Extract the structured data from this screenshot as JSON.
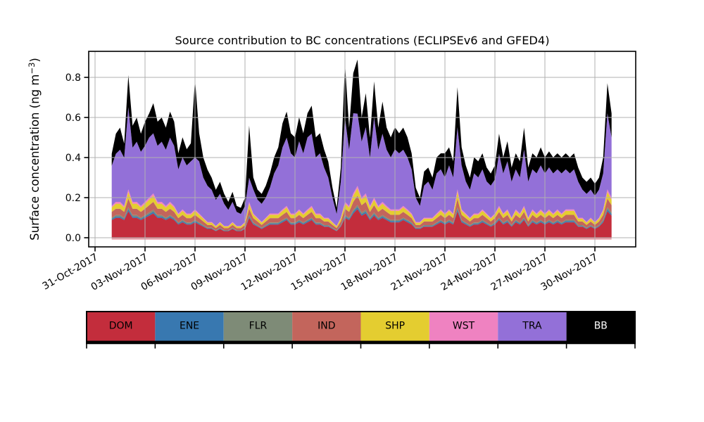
{
  "figure": {
    "title": "Source contribution to BC concentrations (ECLIPSEv6 and GFED4)",
    "ylabel": {
      "pre": "Surface concentration (ng m",
      "sup": "−3",
      "post": ")"
    },
    "background": "#ffffff"
  },
  "chart_data": {
    "type": "area",
    "stacked": true,
    "title": "Source contribution to BC concentrations (ECLIPSEv6 and GFED4)",
    "xlabel": "",
    "ylabel": "Surface concentration (ng m^-3)",
    "grid": true,
    "grid_color": "#b0b0b0",
    "legend_position": "bottom",
    "x_axis": {
      "tick_days": [
        0,
        3,
        6,
        9,
        12,
        15,
        18,
        21,
        24,
        27,
        30
      ],
      "tick_labels": [
        "31-Oct-2017",
        "03-Nov-2017",
        "06-Nov-2017",
        "09-Nov-2017",
        "12-Nov-2017",
        "15-Nov-2017",
        "18-Nov-2017",
        "21-Nov-2017",
        "24-Nov-2017",
        "27-Nov-2017",
        "30-Nov-2017"
      ],
      "xlim_days": [
        -0.4,
        32.45
      ]
    },
    "y_axis": {
      "tick_values": [
        0.0,
        0.2,
        0.4,
        0.6,
        0.8
      ],
      "tick_labels": [
        "0.0",
        "0.2",
        "0.4",
        "0.6",
        "0.8"
      ],
      "ylim": [
        -0.046,
        0.93
      ]
    },
    "x_days": {
      "start": 1.0,
      "step": 0.25,
      "count": 121,
      "epoch_label": "days since 31-Oct-2017 00:00"
    },
    "baseline_edge_color": "#e89aa4",
    "series": [
      {
        "name": "DOM",
        "color": "#c32d3c",
        "values": [
          0.088,
          0.099,
          0.099,
          0.088,
          0.132,
          0.099,
          0.099,
          0.088,
          0.099,
          0.11,
          0.121,
          0.099,
          0.099,
          0.088,
          0.099,
          0.088,
          0.066,
          0.077,
          0.066,
          0.066,
          0.077,
          0.066,
          0.055,
          0.044,
          0.044,
          0.033,
          0.044,
          0.033,
          0.033,
          0.044,
          0.033,
          0.033,
          0.044,
          0.099,
          0.066,
          0.055,
          0.044,
          0.055,
          0.066,
          0.066,
          0.066,
          0.077,
          0.088,
          0.066,
          0.066,
          0.077,
          0.066,
          0.077,
          0.088,
          0.066,
          0.066,
          0.055,
          0.055,
          0.044,
          0.033,
          0.055,
          0.099,
          0.088,
          0.121,
          0.143,
          0.11,
          0.121,
          0.088,
          0.11,
          0.088,
          0.099,
          0.088,
          0.077,
          0.077,
          0.077,
          0.088,
          0.077,
          0.066,
          0.044,
          0.044,
          0.055,
          0.055,
          0.055,
          0.066,
          0.077,
          0.066,
          0.077,
          0.066,
          0.132,
          0.077,
          0.066,
          0.055,
          0.066,
          0.066,
          0.077,
          0.066,
          0.055,
          0.066,
          0.088,
          0.066,
          0.077,
          0.055,
          0.077,
          0.066,
          0.088,
          0.055,
          0.077,
          0.066,
          0.077,
          0.066,
          0.077,
          0.066,
          0.077,
          0.066,
          0.077,
          0.077,
          0.077,
          0.055,
          0.055,
          0.044,
          0.055,
          0.044,
          0.055,
          0.077,
          0.132,
          0.11
        ]
      },
      {
        "name": "ENE",
        "color": "#3878b0",
        "values": [
          0.006,
          0.007,
          0.007,
          0.006,
          0.01,
          0.007,
          0.007,
          0.006,
          0.007,
          0.008,
          0.009,
          0.007,
          0.007,
          0.006,
          0.007,
          0.006,
          0.005,
          0.006,
          0.005,
          0.005,
          0.006,
          0.005,
          0.004,
          0.003,
          0.003,
          0.002,
          0.003,
          0.002,
          0.002,
          0.003,
          0.002,
          0.002,
          0.003,
          0.007,
          0.005,
          0.004,
          0.003,
          0.004,
          0.005,
          0.005,
          0.005,
          0.006,
          0.006,
          0.005,
          0.005,
          0.006,
          0.005,
          0.006,
          0.006,
          0.005,
          0.005,
          0.004,
          0.004,
          0.003,
          0.002,
          0.004,
          0.007,
          0.006,
          0.009,
          0.01,
          0.008,
          0.009,
          0.006,
          0.008,
          0.006,
          0.007,
          0.006,
          0.006,
          0.006,
          0.006,
          0.006,
          0.006,
          0.005,
          0.003,
          0.003,
          0.004,
          0.004,
          0.004,
          0.005,
          0.006,
          0.005,
          0.006,
          0.005,
          0.01,
          0.006,
          0.005,
          0.004,
          0.005,
          0.005,
          0.006,
          0.005,
          0.004,
          0.005,
          0.006,
          0.005,
          0.006,
          0.004,
          0.006,
          0.005,
          0.006,
          0.004,
          0.006,
          0.005,
          0.006,
          0.005,
          0.006,
          0.005,
          0.006,
          0.005,
          0.006,
          0.006,
          0.006,
          0.004,
          0.004,
          0.003,
          0.004,
          0.003,
          0.004,
          0.006,
          0.01,
          0.008
        ]
      },
      {
        "name": "FLR",
        "color": "#7e8b77",
        "values": [
          0.006,
          0.007,
          0.007,
          0.006,
          0.01,
          0.007,
          0.007,
          0.006,
          0.007,
          0.008,
          0.009,
          0.007,
          0.007,
          0.006,
          0.007,
          0.006,
          0.005,
          0.006,
          0.005,
          0.005,
          0.006,
          0.005,
          0.004,
          0.003,
          0.003,
          0.002,
          0.003,
          0.002,
          0.002,
          0.003,
          0.002,
          0.002,
          0.003,
          0.007,
          0.005,
          0.004,
          0.003,
          0.004,
          0.005,
          0.005,
          0.005,
          0.006,
          0.006,
          0.005,
          0.005,
          0.006,
          0.005,
          0.006,
          0.006,
          0.005,
          0.005,
          0.004,
          0.004,
          0.003,
          0.002,
          0.004,
          0.007,
          0.006,
          0.009,
          0.01,
          0.008,
          0.009,
          0.006,
          0.008,
          0.006,
          0.007,
          0.006,
          0.006,
          0.006,
          0.006,
          0.006,
          0.006,
          0.005,
          0.003,
          0.003,
          0.004,
          0.004,
          0.004,
          0.005,
          0.006,
          0.005,
          0.006,
          0.005,
          0.01,
          0.006,
          0.005,
          0.004,
          0.005,
          0.005,
          0.006,
          0.005,
          0.004,
          0.005,
          0.006,
          0.005,
          0.006,
          0.004,
          0.006,
          0.005,
          0.006,
          0.004,
          0.006,
          0.005,
          0.006,
          0.005,
          0.006,
          0.005,
          0.006,
          0.005,
          0.006,
          0.006,
          0.006,
          0.004,
          0.004,
          0.003,
          0.004,
          0.003,
          0.004,
          0.006,
          0.01,
          0.008
        ]
      },
      {
        "name": "IND",
        "color": "#c3655c",
        "values": [
          0.029,
          0.032,
          0.032,
          0.029,
          0.043,
          0.032,
          0.032,
          0.029,
          0.032,
          0.036,
          0.04,
          0.032,
          0.032,
          0.029,
          0.032,
          0.029,
          0.022,
          0.025,
          0.022,
          0.022,
          0.025,
          0.022,
          0.018,
          0.014,
          0.014,
          0.011,
          0.014,
          0.011,
          0.011,
          0.014,
          0.011,
          0.011,
          0.014,
          0.032,
          0.022,
          0.018,
          0.014,
          0.018,
          0.022,
          0.022,
          0.022,
          0.025,
          0.029,
          0.022,
          0.022,
          0.025,
          0.022,
          0.025,
          0.029,
          0.022,
          0.022,
          0.018,
          0.018,
          0.014,
          0.011,
          0.018,
          0.032,
          0.029,
          0.04,
          0.047,
          0.036,
          0.04,
          0.029,
          0.036,
          0.029,
          0.032,
          0.029,
          0.025,
          0.025,
          0.025,
          0.029,
          0.025,
          0.022,
          0.014,
          0.014,
          0.018,
          0.018,
          0.018,
          0.022,
          0.025,
          0.022,
          0.025,
          0.022,
          0.043,
          0.025,
          0.022,
          0.018,
          0.022,
          0.022,
          0.025,
          0.022,
          0.018,
          0.022,
          0.029,
          0.022,
          0.025,
          0.018,
          0.025,
          0.022,
          0.029,
          0.018,
          0.025,
          0.022,
          0.025,
          0.022,
          0.025,
          0.022,
          0.025,
          0.022,
          0.025,
          0.025,
          0.025,
          0.018,
          0.018,
          0.014,
          0.018,
          0.014,
          0.018,
          0.025,
          0.043,
          0.036
        ]
      },
      {
        "name": "SHP",
        "color": "#e4cd30",
        "values": [
          0.022,
          0.025,
          0.025,
          0.022,
          0.034,
          0.025,
          0.025,
          0.022,
          0.025,
          0.028,
          0.031,
          0.025,
          0.025,
          0.022,
          0.025,
          0.022,
          0.017,
          0.02,
          0.017,
          0.017,
          0.02,
          0.017,
          0.014,
          0.011,
          0.011,
          0.008,
          0.011,
          0.008,
          0.008,
          0.011,
          0.008,
          0.008,
          0.011,
          0.025,
          0.017,
          0.014,
          0.011,
          0.014,
          0.017,
          0.017,
          0.017,
          0.02,
          0.022,
          0.017,
          0.017,
          0.02,
          0.017,
          0.02,
          0.022,
          0.017,
          0.017,
          0.014,
          0.014,
          0.011,
          0.008,
          0.014,
          0.025,
          0.022,
          0.031,
          0.036,
          0.028,
          0.031,
          0.022,
          0.028,
          0.022,
          0.025,
          0.022,
          0.02,
          0.02,
          0.02,
          0.022,
          0.02,
          0.017,
          0.011,
          0.011,
          0.014,
          0.014,
          0.014,
          0.017,
          0.02,
          0.017,
          0.02,
          0.017,
          0.034,
          0.02,
          0.017,
          0.014,
          0.017,
          0.017,
          0.02,
          0.017,
          0.014,
          0.017,
          0.022,
          0.017,
          0.02,
          0.014,
          0.02,
          0.017,
          0.022,
          0.014,
          0.02,
          0.017,
          0.02,
          0.017,
          0.02,
          0.017,
          0.02,
          0.017,
          0.02,
          0.02,
          0.02,
          0.014,
          0.014,
          0.011,
          0.014,
          0.011,
          0.014,
          0.02,
          0.034,
          0.028
        ]
      },
      {
        "name": "WST",
        "color": "#ef82c1",
        "values": [
          0.008,
          0.009,
          0.009,
          0.008,
          0.012,
          0.009,
          0.009,
          0.008,
          0.009,
          0.01,
          0.011,
          0.009,
          0.009,
          0.008,
          0.009,
          0.008,
          0.006,
          0.007,
          0.006,
          0.006,
          0.007,
          0.006,
          0.005,
          0.004,
          0.004,
          0.003,
          0.004,
          0.003,
          0.003,
          0.004,
          0.003,
          0.003,
          0.004,
          0.009,
          0.006,
          0.005,
          0.004,
          0.005,
          0.006,
          0.006,
          0.006,
          0.007,
          0.008,
          0.006,
          0.006,
          0.007,
          0.006,
          0.007,
          0.008,
          0.006,
          0.006,
          0.005,
          0.005,
          0.004,
          0.003,
          0.005,
          0.009,
          0.008,
          0.011,
          0.013,
          0.01,
          0.011,
          0.008,
          0.01,
          0.008,
          0.009,
          0.008,
          0.007,
          0.007,
          0.007,
          0.008,
          0.007,
          0.006,
          0.004,
          0.004,
          0.005,
          0.005,
          0.005,
          0.006,
          0.007,
          0.006,
          0.007,
          0.006,
          0.012,
          0.007,
          0.006,
          0.005,
          0.006,
          0.006,
          0.007,
          0.006,
          0.005,
          0.006,
          0.008,
          0.006,
          0.007,
          0.005,
          0.007,
          0.006,
          0.008,
          0.005,
          0.007,
          0.006,
          0.007,
          0.006,
          0.007,
          0.006,
          0.007,
          0.006,
          0.007,
          0.007,
          0.007,
          0.005,
          0.005,
          0.004,
          0.005,
          0.004,
          0.005,
          0.007,
          0.012,
          0.01
        ]
      },
      {
        "name": "TRA",
        "color": "#9370d8",
        "values": [
          0.2,
          0.24,
          0.26,
          0.24,
          0.41,
          0.27,
          0.3,
          0.27,
          0.28,
          0.3,
          0.3,
          0.28,
          0.3,
          0.28,
          0.32,
          0.3,
          0.22,
          0.26,
          0.24,
          0.26,
          0.26,
          0.26,
          0.2,
          0.18,
          0.16,
          0.13,
          0.14,
          0.11,
          0.08,
          0.1,
          0.07,
          0.06,
          0.08,
          0.12,
          0.12,
          0.09,
          0.09,
          0.1,
          0.13,
          0.2,
          0.24,
          0.31,
          0.34,
          0.3,
          0.28,
          0.34,
          0.3,
          0.36,
          0.36,
          0.28,
          0.3,
          0.25,
          0.2,
          0.12,
          0.06,
          0.18,
          0.42,
          0.28,
          0.4,
          0.36,
          0.28,
          0.33,
          0.24,
          0.4,
          0.28,
          0.34,
          0.28,
          0.26,
          0.3,
          0.28,
          0.28,
          0.26,
          0.22,
          0.12,
          0.08,
          0.16,
          0.18,
          0.14,
          0.2,
          0.2,
          0.18,
          0.22,
          0.18,
          0.31,
          0.22,
          0.16,
          0.14,
          0.2,
          0.18,
          0.2,
          0.16,
          0.16,
          0.17,
          0.26,
          0.2,
          0.24,
          0.18,
          0.2,
          0.18,
          0.28,
          0.18,
          0.2,
          0.2,
          0.22,
          0.2,
          0.21,
          0.2,
          0.2,
          0.2,
          0.2,
          0.18,
          0.2,
          0.18,
          0.14,
          0.14,
          0.14,
          0.13,
          0.14,
          0.18,
          0.38,
          0.3
        ]
      },
      {
        "name": "BB",
        "color": "#000000",
        "values": [
          0.06,
          0.1,
          0.11,
          0.07,
          0.16,
          0.11,
          0.12,
          0.09,
          0.12,
          0.12,
          0.15,
          0.12,
          0.12,
          0.11,
          0.13,
          0.12,
          0.08,
          0.1,
          0.08,
          0.09,
          0.39,
          0.14,
          0.1,
          0.08,
          0.06,
          0.05,
          0.06,
          0.05,
          0.04,
          0.05,
          0.03,
          0.03,
          0.04,
          0.26,
          0.06,
          0.05,
          0.05,
          0.06,
          0.07,
          0.08,
          0.09,
          0.12,
          0.13,
          0.1,
          0.1,
          0.12,
          0.1,
          0.12,
          0.14,
          0.1,
          0.1,
          0.09,
          0.08,
          0.05,
          0.03,
          0.07,
          0.27,
          0.11,
          0.2,
          0.27,
          0.12,
          0.17,
          0.1,
          0.18,
          0.11,
          0.16,
          0.11,
          0.1,
          0.11,
          0.1,
          0.11,
          0.1,
          0.08,
          0.05,
          0.04,
          0.07,
          0.07,
          0.06,
          0.08,
          0.08,
          0.12,
          0.09,
          0.08,
          0.2,
          0.09,
          0.08,
          0.06,
          0.08,
          0.08,
          0.08,
          0.07,
          0.06,
          0.07,
          0.1,
          0.08,
          0.1,
          0.07,
          0.08,
          0.08,
          0.11,
          0.07,
          0.08,
          0.08,
          0.09,
          0.08,
          0.08,
          0.08,
          0.08,
          0.08,
          0.08,
          0.08,
          0.08,
          0.07,
          0.06,
          0.06,
          0.06,
          0.06,
          0.06,
          0.08,
          0.15,
          0.12
        ]
      }
    ]
  },
  "legend": {
    "items": [
      {
        "label": "DOM",
        "color": "#c32d3c",
        "text_color": "#000000"
      },
      {
        "label": "ENE",
        "color": "#3878b0",
        "text_color": "#000000"
      },
      {
        "label": "FLR",
        "color": "#7e8b77",
        "text_color": "#000000"
      },
      {
        "label": "IND",
        "color": "#c3655c",
        "text_color": "#000000"
      },
      {
        "label": "SHP",
        "color": "#e4cd30",
        "text_color": "#000000"
      },
      {
        "label": "WST",
        "color": "#ef82c1",
        "text_color": "#000000"
      },
      {
        "label": "TRA",
        "color": "#9370d8",
        "text_color": "#000000"
      },
      {
        "label": "BB",
        "color": "#000000",
        "text_color": "#ffffff"
      }
    ]
  }
}
